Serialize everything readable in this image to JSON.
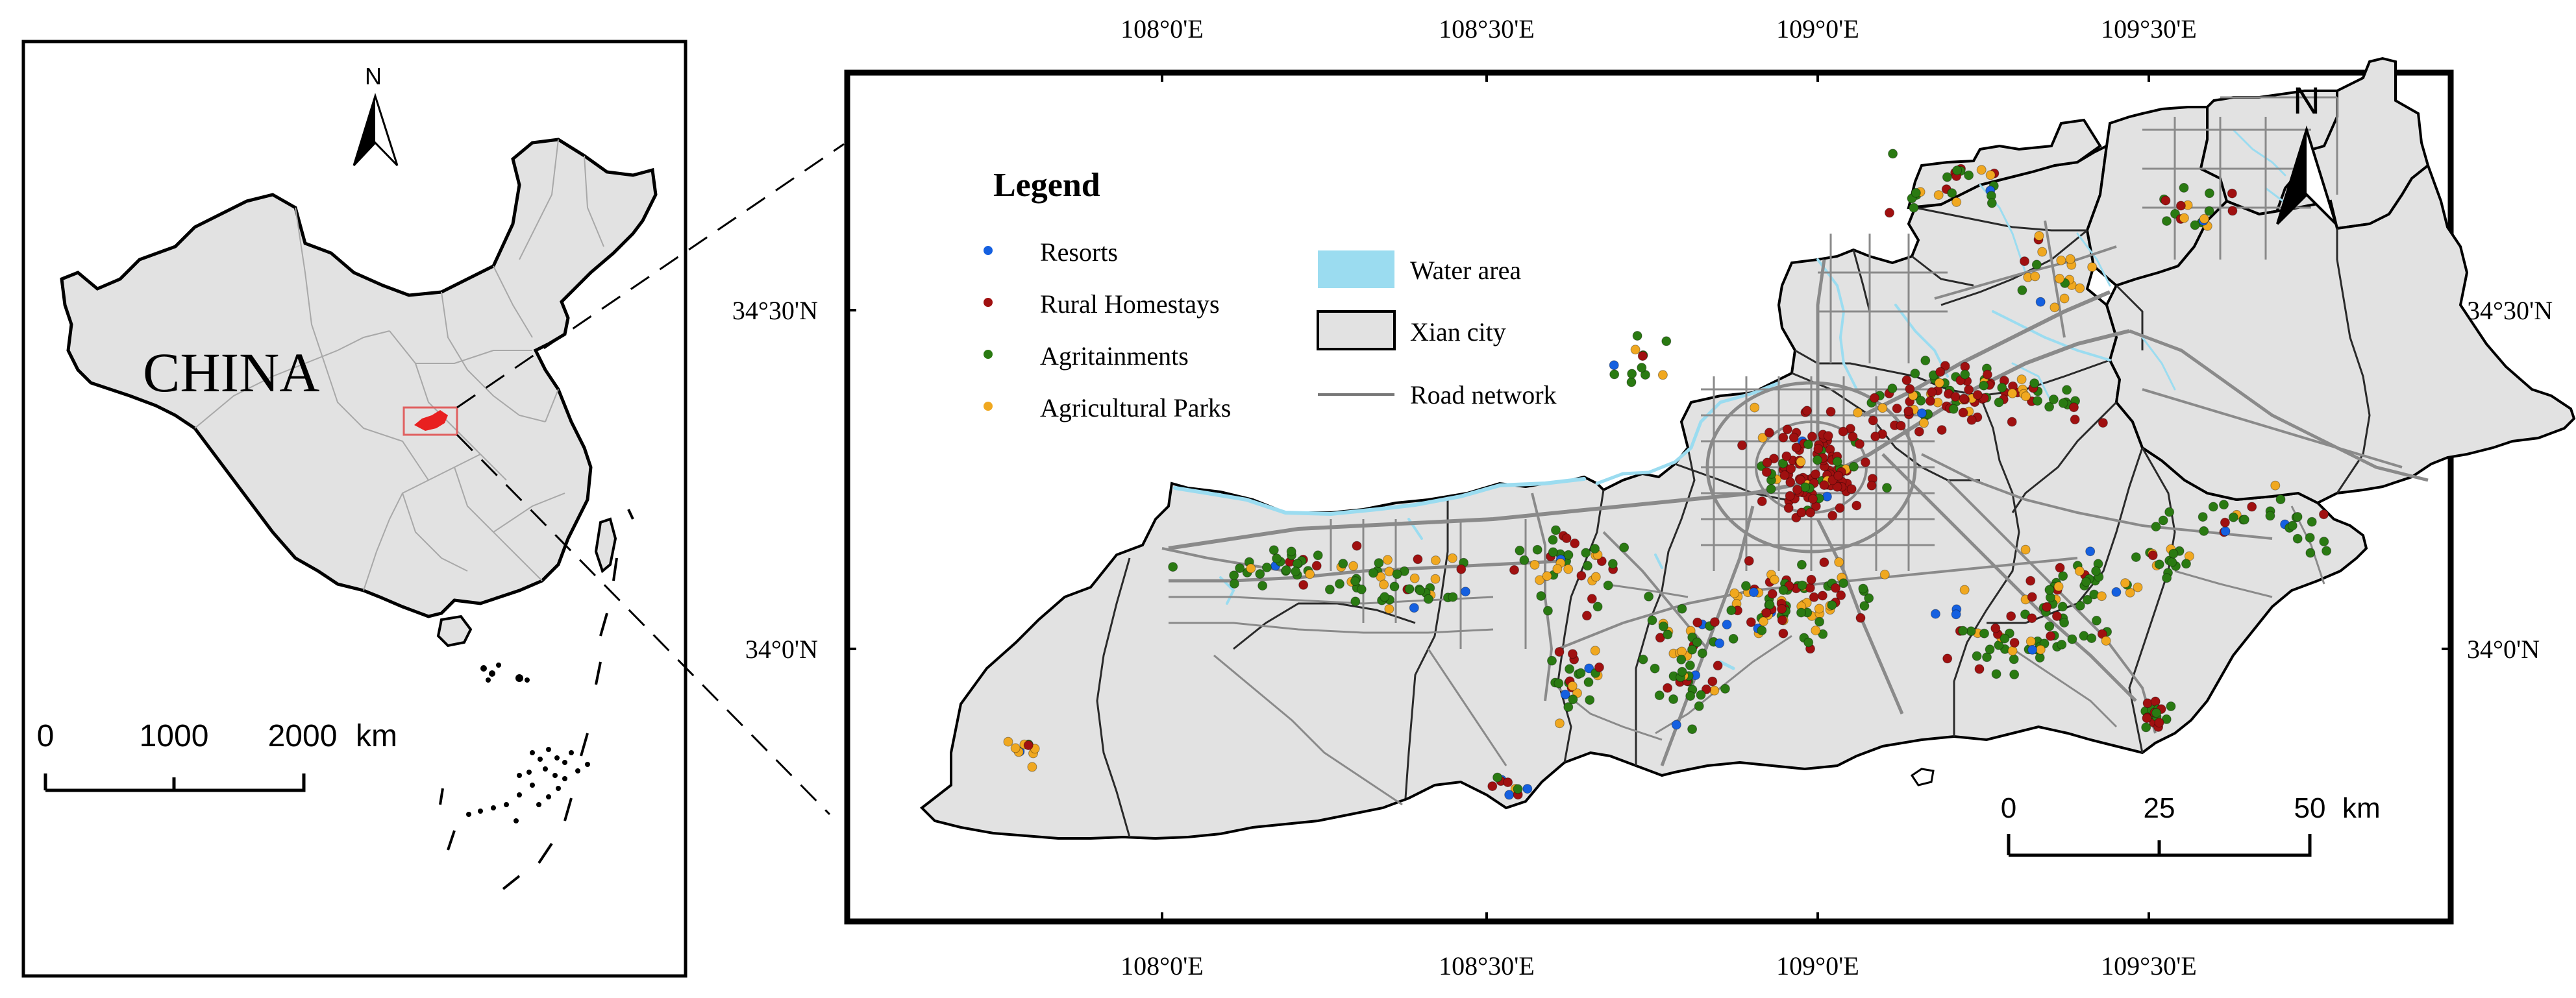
{
  "inset": {
    "country_label": "CHINA",
    "north_label": "N",
    "scale_ticks": [
      "0",
      "1000",
      "2000"
    ],
    "scale_unit": "km"
  },
  "main": {
    "north_label": "N",
    "lon_labels": [
      "108°0'E",
      "108°30'E",
      "109°0'E",
      "109°30'E"
    ],
    "lat_labels": [
      "34°30'N",
      "34°0'N"
    ],
    "scale_ticks": [
      "0",
      "25",
      "50"
    ],
    "scale_unit": "km",
    "legend": {
      "title": "Legend",
      "points": [
        {
          "label": "Resorts",
          "color": "#1560e0"
        },
        {
          "label": "Rural Homestays",
          "color": "#a01010"
        },
        {
          "label": "Agritainments",
          "color": "#2a7a12"
        },
        {
          "label": "Agricultural Parks",
          "color": "#f0a820"
        }
      ],
      "areas": [
        {
          "label": "Water area",
          "color": "#9bdcf0"
        },
        {
          "label": "Xian city",
          "color": "#e2e2e2"
        }
      ],
      "line": {
        "label": "Road network",
        "color": "#777777"
      }
    }
  },
  "colors": {
    "land": "#e2e2e2",
    "water": "#9bdcf0",
    "road": "#8a8a8a",
    "highlight": "#e82020"
  }
}
